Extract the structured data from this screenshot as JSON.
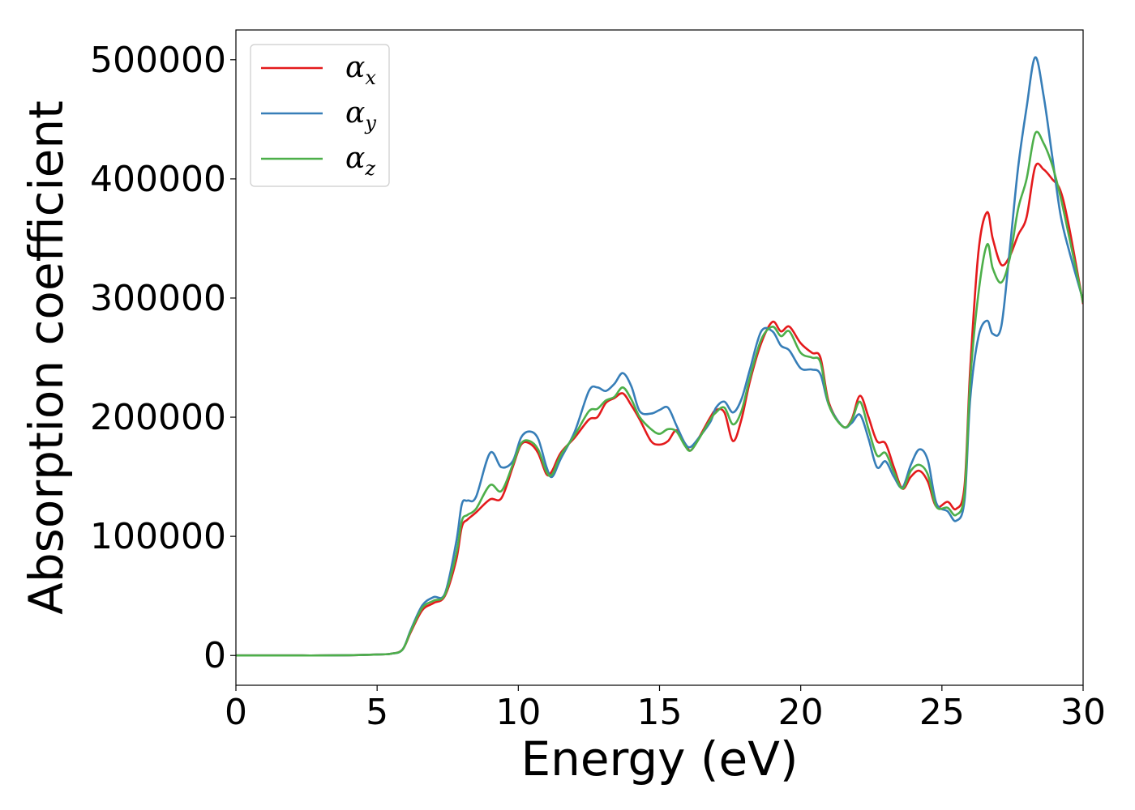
{
  "chart_data": {
    "type": "line",
    "xlabel": "Energy (eV)",
    "ylabel": "Absorption coefficient",
    "xlim": [
      0,
      30
    ],
    "ylim": [
      -25000,
      525000
    ],
    "x_ticks": [
      0,
      5,
      10,
      15,
      20,
      25,
      30
    ],
    "y_ticks": [
      0,
      100000,
      200000,
      300000,
      400000,
      500000
    ],
    "grid": false,
    "legend_position": "top-left",
    "series": [
      {
        "name": "αx",
        "legend_symbol": "α",
        "legend_subscript": "x",
        "color": "#e41a1c",
        "x": [
          0,
          1,
          2,
          3,
          4,
          5,
          5.5,
          5.9,
          6.2,
          6.6,
          7.0,
          7.4,
          7.8,
          8.0,
          8.2,
          8.5,
          9.0,
          9.4,
          9.8,
          10.1,
          10.4,
          10.7,
          11.0,
          11.2,
          11.5,
          12.0,
          12.5,
          12.8,
          13.1,
          13.4,
          13.7,
          14.0,
          14.3,
          14.7,
          15.0,
          15.3,
          15.6,
          15.9,
          16.1,
          16.4,
          16.8,
          17.0,
          17.3,
          17.6,
          17.9,
          18.2,
          18.6,
          19.0,
          19.3,
          19.6,
          20.0,
          20.4,
          20.7,
          21.0,
          21.5,
          21.8,
          22.1,
          22.4,
          22.7,
          23.0,
          23.3,
          23.6,
          23.9,
          24.2,
          24.5,
          24.8,
          25.2,
          25.5,
          25.8,
          26.0,
          26.3,
          26.6,
          26.8,
          27.1,
          27.4,
          27.7,
          28.0,
          28.3,
          28.6,
          28.9,
          29.2,
          29.5,
          30
        ],
        "values": [
          0,
          0,
          0,
          0,
          200,
          800,
          1500,
          5000,
          20000,
          38000,
          44000,
          50000,
          80000,
          108000,
          114000,
          120000,
          131000,
          132000,
          158000,
          177000,
          178000,
          170000,
          152000,
          155000,
          170000,
          183000,
          198000,
          200000,
          212000,
          216000,
          220000,
          210000,
          198000,
          180000,
          177000,
          180000,
          189000,
          178000,
          172000,
          183000,
          200000,
          206000,
          204000,
          180000,
          198000,
          230000,
          262000,
          280000,
          272000,
          276000,
          262000,
          254000,
          250000,
          212000,
          192000,
          198000,
          218000,
          200000,
          180000,
          178000,
          158000,
          140000,
          150000,
          155000,
          146000,
          125000,
          129000,
          123000,
          142000,
          240000,
          340000,
          372000,
          350000,
          328000,
          335000,
          353000,
          368000,
          410000,
          408000,
          400000,
          390000,
          360000,
          295000
        ]
      },
      {
        "name": "αy",
        "legend_symbol": "α",
        "legend_subscript": "y",
        "color": "#377eb8",
        "x": [
          0,
          1,
          2,
          3,
          4,
          5,
          5.5,
          5.9,
          6.2,
          6.6,
          7.0,
          7.4,
          7.8,
          8.0,
          8.2,
          8.5,
          9.0,
          9.4,
          9.8,
          10.1,
          10.4,
          10.7,
          11.0,
          11.2,
          11.5,
          12.0,
          12.5,
          12.8,
          13.1,
          13.4,
          13.7,
          14.0,
          14.3,
          14.7,
          15.0,
          15.3,
          15.6,
          15.9,
          16.1,
          16.4,
          16.8,
          17.0,
          17.3,
          17.6,
          17.9,
          18.2,
          18.6,
          19.0,
          19.3,
          19.6,
          20.0,
          20.4,
          20.7,
          21.0,
          21.5,
          21.8,
          22.1,
          22.4,
          22.7,
          23.0,
          23.3,
          23.6,
          23.9,
          24.2,
          24.5,
          24.8,
          25.2,
          25.5,
          25.8,
          26.0,
          26.3,
          26.6,
          26.8,
          27.1,
          27.4,
          27.7,
          28.0,
          28.3,
          28.6,
          28.9,
          29.2,
          29.5,
          30
        ],
        "values": [
          0,
          0,
          0,
          0,
          200,
          800,
          1500,
          5000,
          22000,
          42000,
          49000,
          52000,
          95000,
          127000,
          130000,
          133000,
          170000,
          158000,
          163000,
          183000,
          188000,
          182000,
          158000,
          150000,
          165000,
          188000,
          222000,
          225000,
          222000,
          228000,
          237000,
          226000,
          205000,
          203000,
          206000,
          208000,
          193000,
          178000,
          175000,
          183000,
          196000,
          208000,
          213000,
          204000,
          215000,
          240000,
          272000,
          272000,
          260000,
          256000,
          241000,
          240000,
          236000,
          210000,
          192000,
          195000,
          202000,
          182000,
          158000,
          163000,
          150000,
          141000,
          160000,
          173000,
          164000,
          128000,
          121000,
          113000,
          130000,
          215000,
          268000,
          281000,
          270000,
          276000,
          340000,
          410000,
          460000,
          502000,
          470000,
          420000,
          370000,
          340000,
          298000
        ]
      },
      {
        "name": "αz",
        "legend_symbol": "α",
        "legend_subscript": "z",
        "color": "#4daf4a",
        "x": [
          0,
          1,
          2,
          3,
          4,
          5,
          5.5,
          5.9,
          6.2,
          6.6,
          7.0,
          7.4,
          7.8,
          8.0,
          8.2,
          8.5,
          9.0,
          9.4,
          9.8,
          10.1,
          10.4,
          10.7,
          11.0,
          11.2,
          11.5,
          12.0,
          12.5,
          12.8,
          13.1,
          13.4,
          13.7,
          14.0,
          14.3,
          14.7,
          15.0,
          15.3,
          15.6,
          15.9,
          16.1,
          16.4,
          16.8,
          17.0,
          17.3,
          17.6,
          17.9,
          18.2,
          18.6,
          19.0,
          19.3,
          19.6,
          20.0,
          20.4,
          20.7,
          21.0,
          21.5,
          21.8,
          22.1,
          22.4,
          22.7,
          23.0,
          23.3,
          23.6,
          23.9,
          24.2,
          24.5,
          24.8,
          25.2,
          25.5,
          25.8,
          26.0,
          26.3,
          26.6,
          26.8,
          27.1,
          27.4,
          27.7,
          28.0,
          28.3,
          28.6,
          28.9,
          29.2,
          29.5,
          30
        ],
        "values": [
          0,
          0,
          0,
          0,
          200,
          800,
          1500,
          5000,
          21000,
          40000,
          46000,
          51000,
          85000,
          113000,
          118000,
          123000,
          143000,
          138000,
          160000,
          178000,
          180000,
          173000,
          154000,
          152000,
          168000,
          185000,
          205000,
          207000,
          214000,
          217000,
          225000,
          215000,
          200000,
          190000,
          186000,
          190000,
          188000,
          176000,
          172000,
          182000,
          198000,
          204000,
          208000,
          194000,
          205000,
          233000,
          265000,
          276000,
          268000,
          272000,
          254000,
          250000,
          246000,
          210000,
          192000,
          197000,
          213000,
          190000,
          168000,
          170000,
          154000,
          140000,
          155000,
          160000,
          152000,
          125000,
          124000,
          118000,
          136000,
          230000,
          305000,
          345000,
          325000,
          313000,
          333000,
          375000,
          400000,
          438000,
          430000,
          412000,
          385000,
          352000,
          296000
        ]
      }
    ]
  }
}
